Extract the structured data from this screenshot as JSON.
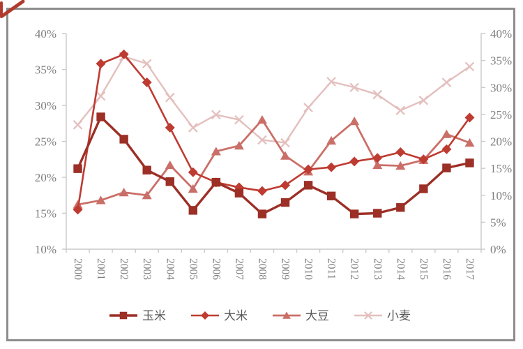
{
  "window": {
    "background": "#ffffff",
    "frame_border_color": "#8d8d8d",
    "corner_mark_color": "#b03a2e"
  },
  "chart_data": {
    "type": "line",
    "title": "",
    "categories": [
      "2000",
      "2001",
      "2002",
      "2003",
      "2004",
      "2005",
      "2006",
      "2007",
      "2008",
      "2009",
      "2010",
      "2011",
      "2012",
      "2013",
      "2014",
      "2015",
      "2016",
      "2017"
    ],
    "left_axis": {
      "label_suffix": "%",
      "min": 10,
      "max": 40,
      "step": 5,
      "tick_labels": [
        "40%",
        "35%",
        "30%",
        "25%",
        "20%",
        "15%",
        "10%"
      ]
    },
    "right_axis": {
      "label_suffix": "%",
      "min": 0,
      "max": 40,
      "step": 5,
      "tick_labels": [
        "40%",
        "35%",
        "30%",
        "25%",
        "20%",
        "15%",
        "10%",
        "5%",
        "0%"
      ]
    },
    "grid": "off",
    "legend_position": "bottom",
    "series": [
      {
        "name": "玉米",
        "marker": "square",
        "color": "#9c2f26",
        "values": [
          21.2,
          28.4,
          25.3,
          21.0,
          19.4,
          15.4,
          19.3,
          17.8,
          14.9,
          16.5,
          18.9,
          17.4,
          14.9,
          15.0,
          15.8,
          18.4,
          21.3,
          22.0
        ]
      },
      {
        "name": "大米",
        "marker": "diamond",
        "color": "#be3b31",
        "values": [
          15.5,
          35.8,
          37.1,
          33.2,
          26.9,
          20.7,
          19.3,
          18.6,
          18.1,
          18.9,
          21.1,
          21.4,
          22.2,
          22.7,
          23.5,
          22.5,
          23.9,
          28.3
        ]
      },
      {
        "name": "大豆",
        "marker": "triangle",
        "color": "#ca6f68",
        "values": [
          16.2,
          16.8,
          17.9,
          17.5,
          21.7,
          18.4,
          23.6,
          24.4,
          28.0,
          23.0,
          20.8,
          25.1,
          27.8,
          21.7,
          21.6,
          22.4,
          26.0,
          24.8
        ]
      },
      {
        "name": "小麦",
        "marker": "x",
        "color": "#e3bfbd",
        "values": [
          27.3,
          31.3,
          36.8,
          35.8,
          31.1,
          26.9,
          28.7,
          28.0,
          25.2,
          24.8,
          29.7,
          33.3,
          32.5,
          31.5,
          29.3,
          30.7,
          33.2,
          35.4
        ]
      }
    ],
    "style": {
      "axis_line_color": "#c9c9c9",
      "tick_text_color": "#7f7f7f",
      "legend_text_color": "#595959"
    }
  }
}
